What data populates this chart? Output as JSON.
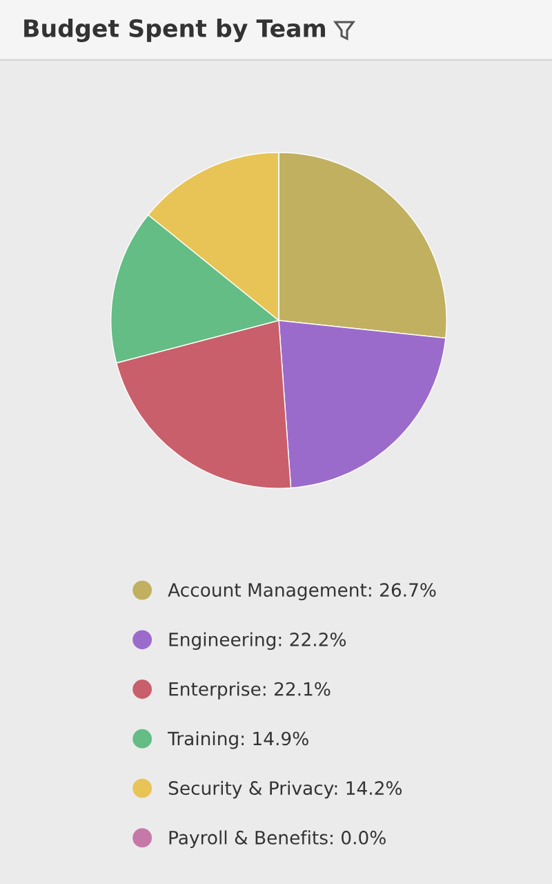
{
  "chart_data": {
    "type": "pie",
    "title": "Budget Spent by Team",
    "categories": [
      "Account Management",
      "Engineering",
      "Enterprise",
      "Training",
      "Security & Privacy",
      "Payroll & Benefits"
    ],
    "values": [
      26.7,
      22.2,
      22.1,
      14.9,
      14.2,
      0.0
    ],
    "value_labels": [
      "26.7%",
      "22.2%",
      "22.1%",
      "14.9%",
      "14.2%",
      "0.0%"
    ],
    "colors": [
      "#c0b060",
      "#9b6bcc",
      "#c95f6a",
      "#63bd85",
      "#e8c457",
      "#c678a8"
    ],
    "legend": "bottom"
  }
}
